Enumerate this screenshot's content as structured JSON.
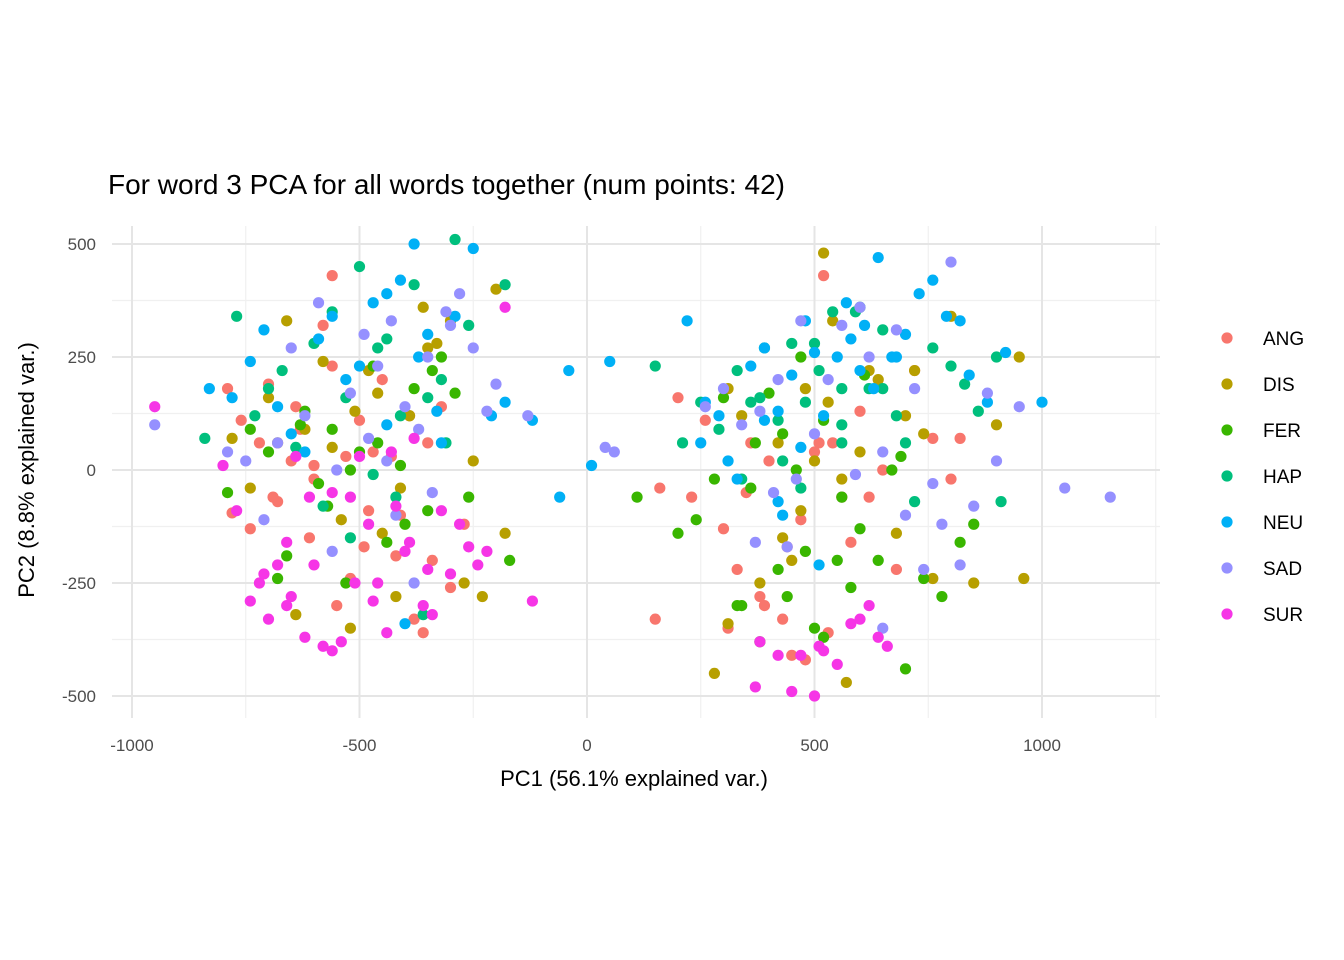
{
  "chart_data": {
    "type": "scatter",
    "title": "For word 3 PCA for all words together (num points: 42)",
    "xlabel": "PC1 (56.1% explained var.)",
    "ylabel": "PC2 (8.8% explained var.)",
    "xlim": [
      -1000,
      1250
    ],
    "ylim": [
      -550,
      550
    ],
    "xticks": [
      -1000,
      -500,
      0,
      500,
      1000
    ],
    "xtick_labels": [
      "-1000",
      "-500",
      "0",
      "500",
      "1000"
    ],
    "yticks": [
      -500,
      -250,
      0,
      250,
      500
    ],
    "ytick_labels": [
      "-500",
      "-250",
      "0",
      "250",
      "500"
    ],
    "grid": true,
    "legend_position": "right",
    "series": [
      {
        "name": "ANG",
        "color": "#F8766D",
        "x": [
          -790,
          -760,
          -720,
          -680,
          -650,
          -610,
          -580,
          -560,
          -530,
          -500,
          -480,
          -450,
          -420,
          -380,
          -350,
          -320,
          -600,
          -640,
          -700,
          -740,
          -520,
          -470,
          -410,
          -360,
          -300,
          -780,
          -690,
          -630,
          -550,
          -490,
          -430,
          -390,
          -340,
          -270,
          -560,
          -600,
          150,
          160,
          200,
          230,
          260,
          300,
          330,
          360,
          380,
          400,
          430,
          450,
          470,
          500,
          520,
          540,
          560,
          580,
          600,
          620,
          650,
          680,
          720,
          760,
          800,
          820,
          480,
          510,
          530,
          440,
          390,
          350,
          310
        ],
        "y": [
          180,
          110,
          60,
          -70,
          20,
          -150,
          320,
          230,
          30,
          110,
          -90,
          200,
          -190,
          -330,
          60,
          140,
          -20,
          140,
          190,
          -130,
          -240,
          40,
          -100,
          -360,
          -260,
          -95,
          -60,
          90,
          -300,
          -170,
          30,
          120,
          -200,
          -120,
          430,
          10,
          -330,
          -40,
          160,
          -60,
          110,
          -130,
          -220,
          60,
          -280,
          20,
          -330,
          -410,
          -110,
          40,
          430,
          60,
          -60,
          -160,
          130,
          -60,
          0,
          -220,
          220,
          70,
          -20,
          70,
          -420,
          60,
          -360,
          -170,
          -300,
          -50,
          -350
        ]
      },
      {
        "name": "DIS",
        "color": "#B79F00",
        "x": [
          -780,
          -740,
          -700,
          -660,
          -620,
          -580,
          -540,
          -510,
          -480,
          -450,
          -420,
          -390,
          -360,
          -330,
          -300,
          -270,
          -250,
          -230,
          -200,
          -180,
          -680,
          -640,
          -560,
          -520,
          -460,
          -410,
          -350,
          280,
          310,
          340,
          380,
          420,
          450,
          480,
          520,
          540,
          570,
          600,
          640,
          680,
          720,
          760,
          800,
          850,
          900,
          950,
          960,
          530,
          560,
          500,
          470,
          620,
          700,
          740,
          310,
          430
        ],
        "y": [
          70,
          -40,
          160,
          330,
          90,
          240,
          -110,
          130,
          220,
          -140,
          -280,
          120,
          360,
          280,
          330,
          -250,
          20,
          -280,
          400,
          -140,
          60,
          -320,
          50,
          -350,
          170,
          -40,
          270,
          -450,
          -340,
          120,
          -250,
          60,
          -200,
          180,
          480,
          330,
          -470,
          40,
          200,
          -140,
          220,
          -240,
          340,
          -250,
          100,
          250,
          -240,
          150,
          -20,
          20,
          -90,
          220,
          120,
          80,
          180,
          -150
        ]
      },
      {
        "name": "FER",
        "color": "#39B600",
        "x": [
          -790,
          -740,
          -700,
          -660,
          -620,
          -590,
          -560,
          -530,
          -500,
          -470,
          -440,
          -410,
          -380,
          -350,
          -320,
          -290,
          -260,
          -170,
          -680,
          -630,
          -570,
          -520,
          -460,
          -400,
          -340,
          110,
          200,
          240,
          280,
          300,
          340,
          370,
          400,
          420,
          440,
          460,
          480,
          500,
          520,
          550,
          580,
          610,
          640,
          670,
          700,
          740,
          780,
          820,
          850,
          380,
          430,
          470,
          560,
          520,
          600,
          690,
          360,
          330
        ],
        "y": [
          -50,
          90,
          40,
          -190,
          130,
          -30,
          90,
          -250,
          40,
          230,
          -160,
          10,
          180,
          -90,
          250,
          170,
          -60,
          -200,
          -240,
          100,
          -80,
          0,
          60,
          -120,
          220,
          -60,
          -140,
          -110,
          -20,
          160,
          -300,
          60,
          170,
          -220,
          -280,
          0,
          -180,
          -350,
          110,
          -200,
          -260,
          210,
          -200,
          0,
          -440,
          -240,
          -280,
          -160,
          -120,
          -380,
          80,
          250,
          -60,
          -370,
          -130,
          30,
          -40,
          -300
        ]
      },
      {
        "name": "HAP",
        "color": "#00BF7D",
        "x": [
          -840,
          -770,
          -730,
          -700,
          -670,
          -640,
          -600,
          -580,
          -560,
          -530,
          -500,
          -470,
          -440,
          -410,
          -380,
          -350,
          -320,
          -290,
          -260,
          -180,
          -520,
          -460,
          -420,
          -360,
          -310,
          150,
          210,
          250,
          290,
          330,
          360,
          390,
          420,
          450,
          480,
          510,
          540,
          560,
          590,
          620,
          650,
          680,
          720,
          760,
          800,
          830,
          860,
          900,
          910,
          600,
          560,
          500,
          470,
          430,
          380,
          700,
          650,
          340,
          560
        ],
        "y": [
          70,
          340,
          120,
          180,
          220,
          50,
          280,
          -80,
          350,
          160,
          450,
          -10,
          290,
          120,
          410,
          160,
          200,
          510,
          320,
          410,
          -150,
          270,
          -60,
          -320,
          60,
          230,
          60,
          150,
          90,
          220,
          150,
          270,
          110,
          280,
          150,
          220,
          350,
          60,
          350,
          180,
          310,
          120,
          -70,
          270,
          230,
          190,
          130,
          250,
          -70,
          360,
          180,
          280,
          -40,
          20,
          160,
          60,
          180,
          -20,
          100
        ]
      },
      {
        "name": "NEU",
        "color": "#00B0F6",
        "x": [
          -830,
          -780,
          -740,
          -710,
          -680,
          -650,
          -620,
          -590,
          -560,
          -530,
          -500,
          -470,
          -440,
          -410,
          -380,
          -350,
          -320,
          -290,
          -250,
          -210,
          -180,
          -120,
          -60,
          -40,
          -400,
          -440,
          -370,
          -330,
          10,
          50,
          220,
          250,
          290,
          330,
          360,
          390,
          420,
          450,
          480,
          500,
          520,
          550,
          580,
          610,
          640,
          670,
          700,
          730,
          760,
          790,
          820,
          840,
          880,
          920,
          1000,
          570,
          600,
          630,
          680,
          420,
          470,
          260,
          310,
          390,
          430,
          510
        ],
        "y": [
          180,
          160,
          240,
          310,
          140,
          80,
          40,
          290,
          340,
          200,
          230,
          370,
          100,
          420,
          500,
          300,
          60,
          340,
          490,
          120,
          150,
          110,
          -60,
          220,
          -340,
          390,
          250,
          130,
          10,
          240,
          330,
          60,
          120,
          -20,
          230,
          270,
          130,
          210,
          330,
          260,
          120,
          250,
          290,
          320,
          470,
          250,
          300,
          390,
          420,
          340,
          330,
          210,
          150,
          260,
          150,
          370,
          220,
          180,
          250,
          -70,
          50,
          150,
          20,
          110,
          -100,
          -210
        ]
      },
      {
        "name": "SAD",
        "color": "#9590FF",
        "x": [
          -950,
          -790,
          -750,
          -710,
          -680,
          -650,
          -620,
          -590,
          -550,
          -520,
          -490,
          -460,
          -430,
          -400,
          -370,
          -340,
          -310,
          -280,
          -250,
          -220,
          -200,
          -130,
          -560,
          -480,
          -420,
          -380,
          -300,
          -440,
          -350,
          40,
          60,
          260,
          300,
          340,
          380,
          410,
          440,
          470,
          500,
          530,
          560,
          590,
          620,
          650,
          680,
          720,
          760,
          800,
          850,
          900,
          950,
          1050,
          1150,
          820,
          880,
          700,
          600,
          460,
          370,
          420,
          650,
          740,
          780
        ],
        "y": [
          100,
          40,
          20,
          -110,
          60,
          270,
          120,
          370,
          0,
          170,
          300,
          230,
          330,
          140,
          90,
          -50,
          350,
          390,
          270,
          130,
          190,
          120,
          -180,
          70,
          -100,
          -250,
          320,
          20,
          250,
          50,
          40,
          140,
          180,
          100,
          130,
          -50,
          -170,
          330,
          80,
          200,
          320,
          -10,
          250,
          40,
          310,
          180,
          -30,
          460,
          -80,
          20,
          140,
          -40,
          -60,
          -210,
          170,
          -100,
          360,
          -20,
          -160,
          200,
          -350,
          -220,
          -120
        ]
      },
      {
        "name": "SUR",
        "color": "#F635E6",
        "x": [
          -950,
          -800,
          -770,
          -740,
          -720,
          -700,
          -680,
          -660,
          -640,
          -620,
          -600,
          -580,
          -560,
          -540,
          -520,
          -500,
          -480,
          -460,
          -440,
          -420,
          -400,
          -380,
          -360,
          -340,
          -320,
          -300,
          -280,
          -260,
          -240,
          -220,
          -180,
          -120,
          -660,
          -610,
          -560,
          -510,
          -470,
          -430,
          -390,
          -350,
          450,
          470,
          500,
          510,
          520,
          550,
          580,
          600,
          620,
          640,
          660,
          380,
          420,
          370,
          -710,
          -650
        ],
        "y": [
          140,
          10,
          -90,
          -290,
          -250,
          -330,
          -210,
          -300,
          30,
          -370,
          -210,
          -390,
          -400,
          -380,
          -60,
          30,
          -120,
          -250,
          -360,
          -80,
          -180,
          70,
          -300,
          -320,
          -90,
          -230,
          -120,
          -170,
          -210,
          -180,
          360,
          -290,
          -160,
          -60,
          -50,
          -250,
          -290,
          40,
          -160,
          -220,
          -490,
          -410,
          -500,
          -390,
          -400,
          -430,
          -340,
          -330,
          -300,
          -370,
          -390,
          -380,
          -410,
          -480,
          -230,
          -280
        ]
      }
    ]
  }
}
